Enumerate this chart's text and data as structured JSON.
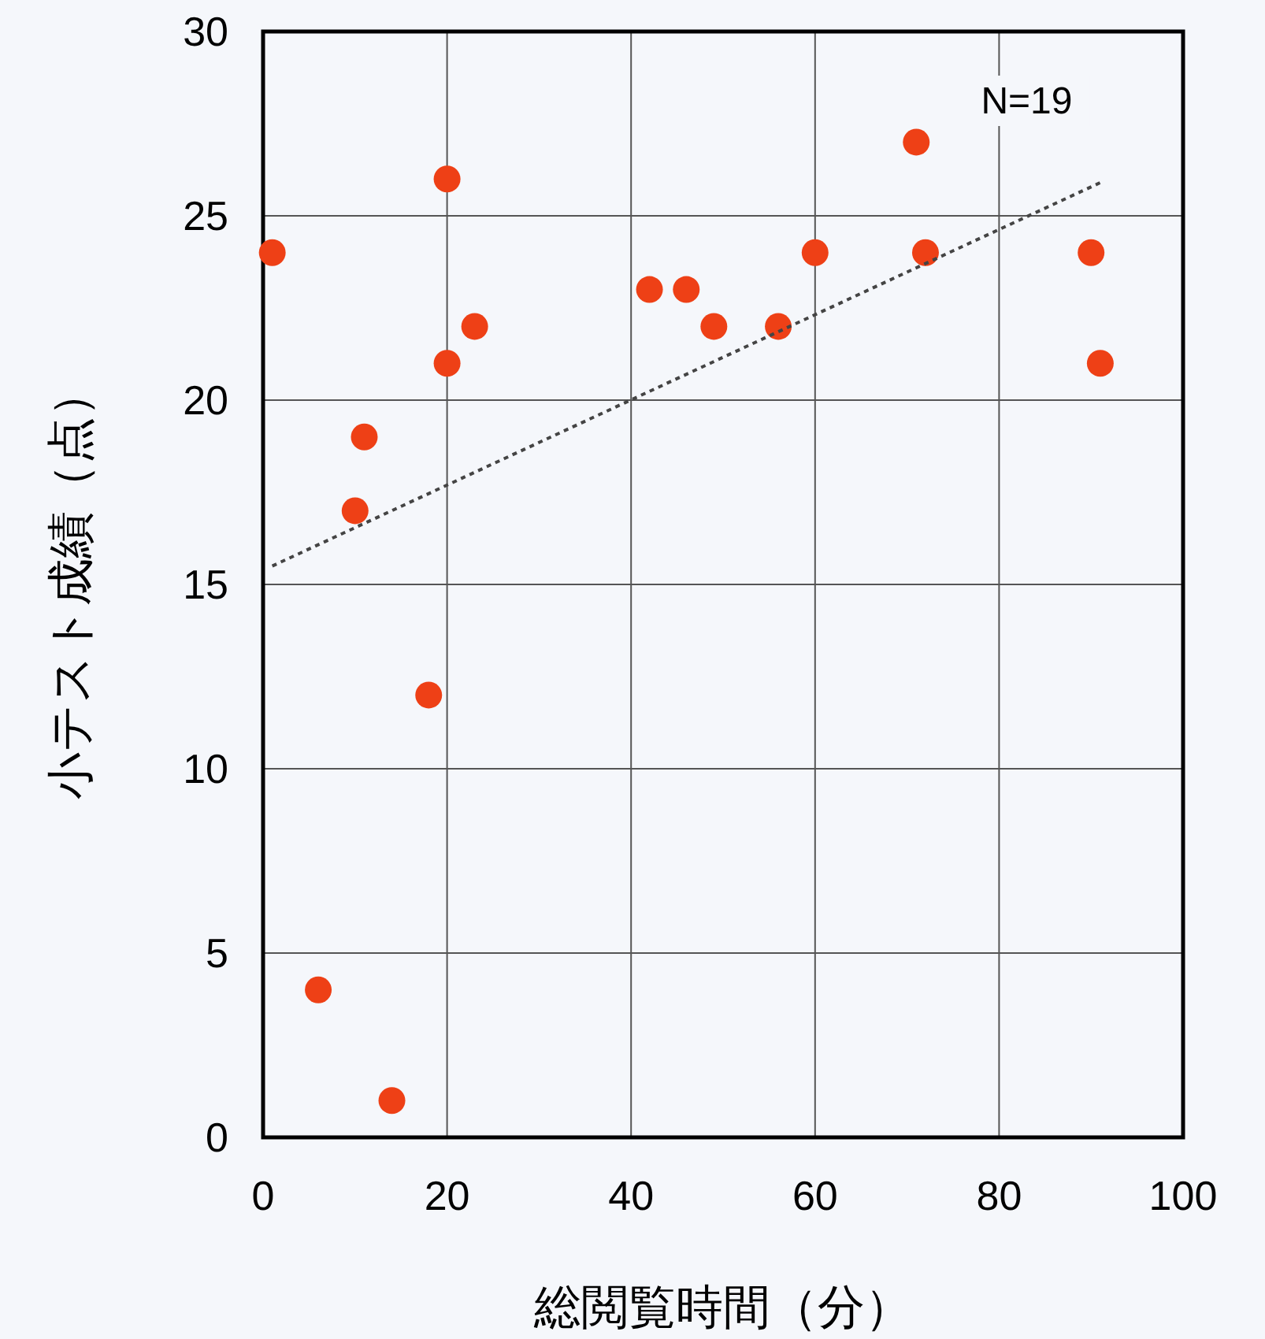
{
  "chart_data": {
    "type": "scatter",
    "xlabel": "総閲覧時間（分）",
    "ylabel": "小テスト成績（点）",
    "annotations": [
      "N=19"
    ],
    "xlim": [
      0,
      100
    ],
    "xticks": [
      0,
      20,
      40,
      60,
      80,
      100
    ],
    "ylim": [
      0,
      30
    ],
    "yticks": [
      0,
      5,
      10,
      15,
      20,
      25,
      30
    ],
    "grid": true,
    "marker": "circle",
    "series": [
      {
        "type": "scatter",
        "color": "#ee4016",
        "x": [
          1,
          6,
          10,
          11,
          14,
          18,
          20,
          20,
          23,
          42,
          46,
          49,
          56,
          60,
          71,
          72,
          90,
          91
        ],
        "values": [
          24,
          4,
          17,
          19,
          1,
          12,
          26,
          21,
          22,
          23,
          23,
          22,
          22,
          24,
          27,
          24,
          24,
          21
        ]
      },
      {
        "type": "line",
        "color": "#444444",
        "line_style": "dotted",
        "marker": "none",
        "x": [
          1,
          91
        ],
        "values": [
          15.5,
          25.9
        ]
      }
    ]
  }
}
